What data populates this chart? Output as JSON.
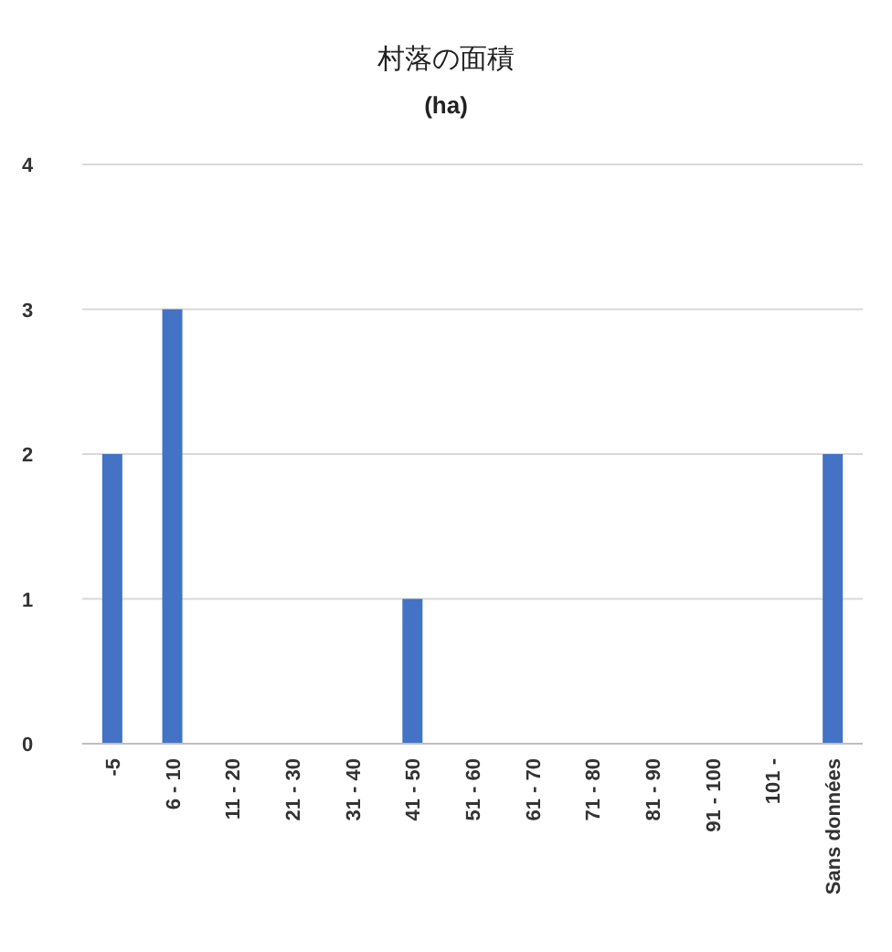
{
  "chart_data": {
    "type": "bar",
    "title": "村落の面積",
    "subtitle": "(ha)",
    "categories": [
      "-5",
      "6 - 10",
      "11 - 20",
      "21 - 30",
      "31 - 40",
      "41 - 50",
      "51 - 60",
      "61 - 70",
      "71 - 80",
      "81 - 90",
      "91 - 100",
      "101 -",
      "Sans données"
    ],
    "values": [
      2,
      3,
      0,
      0,
      0,
      1,
      0,
      0,
      0,
      0,
      0,
      0,
      2
    ],
    "color": "#4472c4",
    "ylim": [
      0,
      4
    ],
    "yticks": [
      0,
      1,
      2,
      3,
      4
    ],
    "grid": "y"
  }
}
